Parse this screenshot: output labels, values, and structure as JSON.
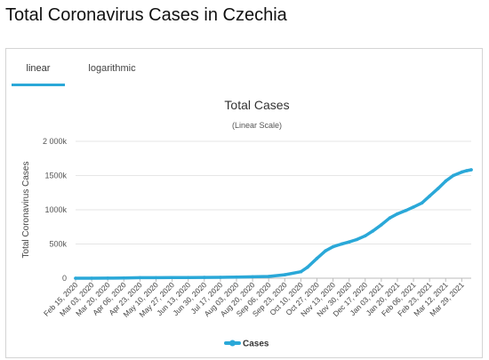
{
  "page": {
    "title": "Total Coronavirus Cases in Czechia"
  },
  "tabs": [
    {
      "label": "linear",
      "active": true
    },
    {
      "label": "logarithmic",
      "active": false
    }
  ],
  "colors": {
    "series": "#2aa8d8",
    "tab_active": "#2aa8d8",
    "grid": "#e6e6e6"
  },
  "chart_data": {
    "type": "line",
    "title": "Total Cases",
    "subtitle": "(Linear Scale)",
    "ylabel": "Total Coronavirus Cases",
    "xlabel": "",
    "ylim": [
      0,
      2000000
    ],
    "y_ticks": [
      0,
      500000,
      1000000,
      1500000,
      2000000
    ],
    "y_tick_labels": [
      "0",
      "500k",
      "1000k",
      "1500k",
      "2 000k"
    ],
    "x_tick_labels": [
      "Feb 15, 2020",
      "Mar 03, 2020",
      "Mar 20, 2020",
      "Apr 06, 2020",
      "Apr 23, 2020",
      "May 10, 2020",
      "May 27, 2020",
      "Jun 13, 2020",
      "Jun 30, 2020",
      "Jul 17, 2020",
      "Aug 03, 2020",
      "Aug 20, 2020",
      "Sep 06, 2020",
      "Sep 23, 2020",
      "Oct 10, 2020",
      "Oct 27, 2020",
      "Nov 13, 2020",
      "Nov 30, 2020",
      "Dec 17, 2020",
      "Jan 03, 2021",
      "Jan 20, 2021",
      "Feb 06, 2021",
      "Feb 23, 2021",
      "Mar 12, 2021",
      "Mar 29, 2021"
    ],
    "grid": true,
    "legend": "bottom-center",
    "series": [
      {
        "name": "Cases",
        "x": [
          "Feb 15, 2020",
          "Mar 03, 2020",
          "Mar 20, 2020",
          "Apr 06, 2020",
          "Apr 23, 2020",
          "May 10, 2020",
          "May 27, 2020",
          "Jun 13, 2020",
          "Jun 30, 2020",
          "Jul 17, 2020",
          "Aug 03, 2020",
          "Aug 20, 2020",
          "Sep 06, 2020",
          "Sep 23, 2020",
          "Oct 10, 2020",
          "Oct 17, 2020",
          "Oct 27, 2020",
          "Nov 05, 2020",
          "Nov 13, 2020",
          "Nov 22, 2020",
          "Nov 30, 2020",
          "Dec 08, 2020",
          "Dec 17, 2020",
          "Dec 25, 2020",
          "Jan 03, 2021",
          "Jan 12, 2021",
          "Jan 20, 2021",
          "Jan 29, 2021",
          "Feb 06, 2021",
          "Feb 15, 2021",
          "Feb 23, 2021",
          "Mar 04, 2021",
          "Mar 12, 2021",
          "Mar 20, 2021",
          "Mar 29, 2021",
          "Apr 03, 2021",
          "Apr 08, 2021"
        ],
        "values": [
          0,
          0,
          800,
          4500,
          7300,
          8200,
          9000,
          10200,
          12000,
          13500,
          16800,
          20500,
          26000,
          51000,
          95000,
          160000,
          290000,
          400000,
          460000,
          500000,
          530000,
          565000,
          620000,
          690000,
          780000,
          880000,
          940000,
          990000,
          1040000,
          1100000,
          1200000,
          1310000,
          1420000,
          1500000,
          1550000,
          1570000,
          1585000
        ]
      }
    ]
  }
}
